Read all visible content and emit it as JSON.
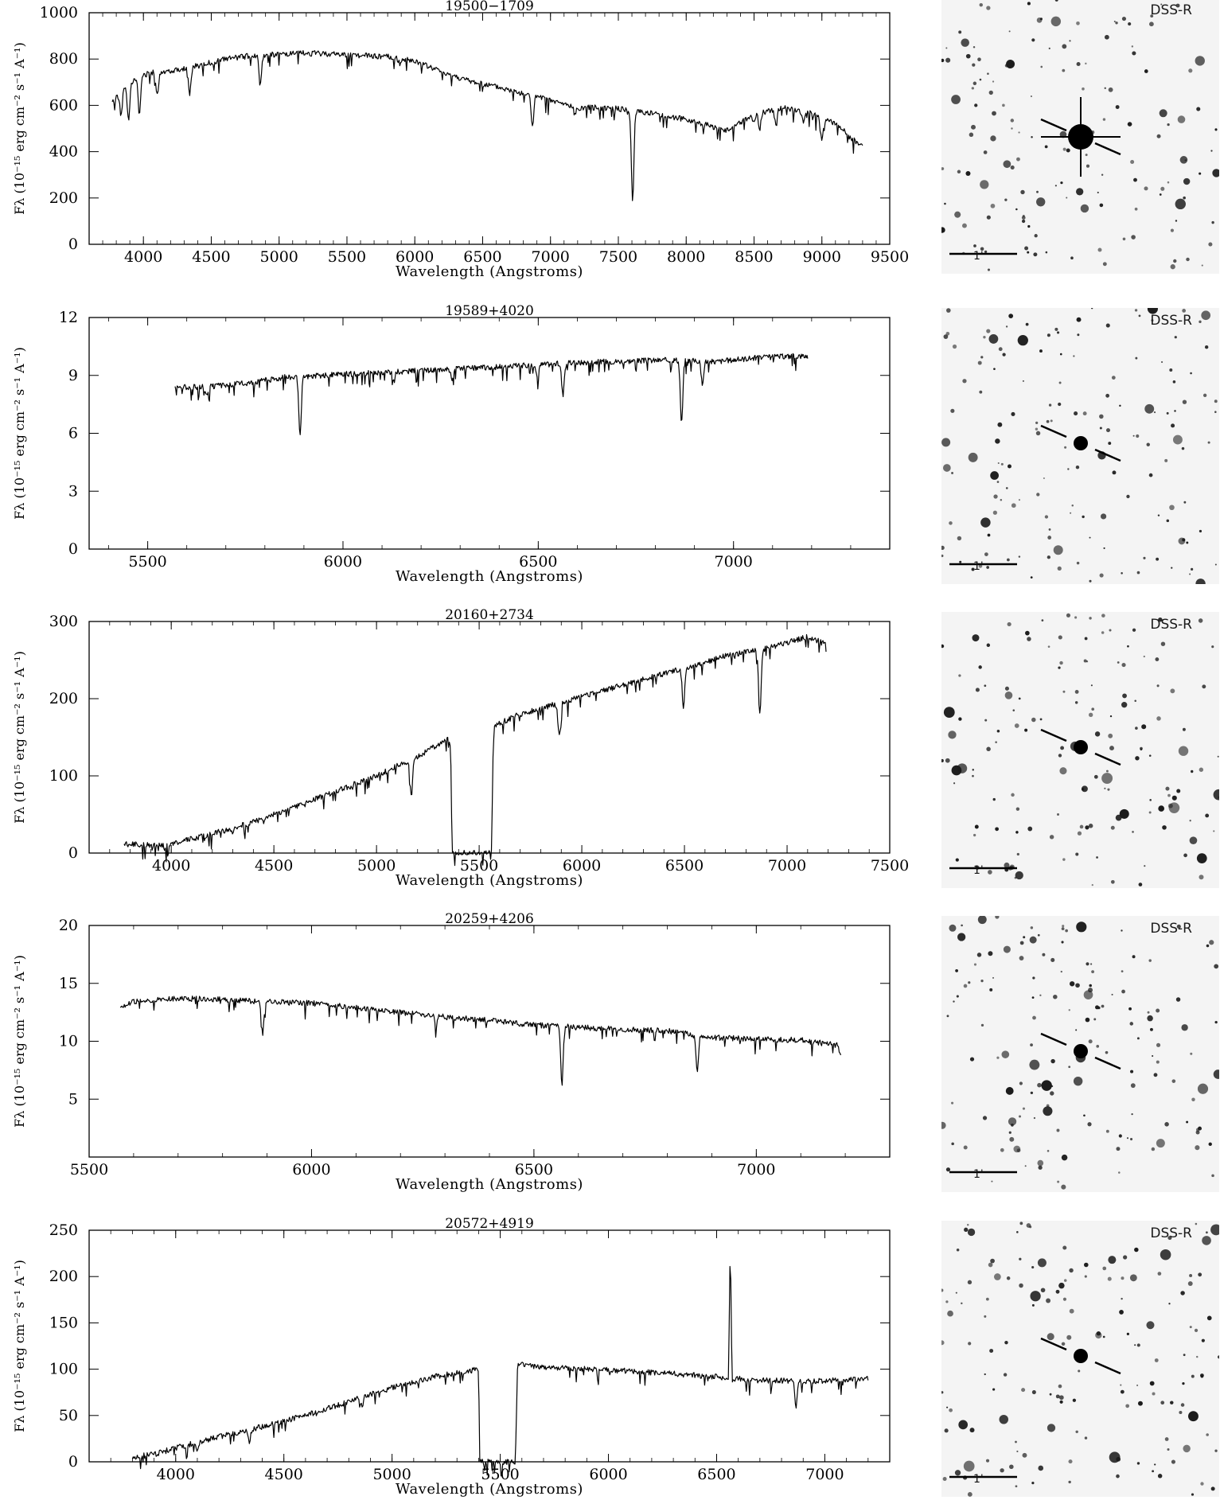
{
  "chart_data": [
    {
      "type": "line",
      "title": "19500−1709",
      "xlabel": "Wavelength (Angstroms)",
      "ylabel": "Fλ (10⁻¹⁵ erg cm⁻² s⁻¹ A⁻¹)",
      "xlim": [
        3600,
        9500
      ],
      "ylim": [
        0,
        1000
      ],
      "xticks": [
        4000,
        4500,
        5000,
        5500,
        6000,
        6500,
        7000,
        7500,
        8000,
        8500,
        9000,
        9500
      ],
      "yticks": [
        0,
        200,
        400,
        600,
        800,
        1000
      ],
      "series": [
        {
          "x": [
            3770,
            3820,
            3880,
            3950,
            4050,
            4200,
            4400,
            4600,
            4800,
            5000,
            5200,
            5400,
            5600,
            5800,
            6000,
            6200,
            6400,
            6600,
            6800,
            6880,
            7000,
            7200,
            7400,
            7600,
            7700,
            7900,
            8100,
            8300,
            8500,
            8700,
            8900,
            9100,
            9300
          ],
          "y": [
            610,
            650,
            690,
            720,
            740,
            750,
            770,
            800,
            815,
            820,
            825,
            822,
            815,
            810,
            790,
            745,
            705,
            680,
            650,
            640,
            620,
            590,
            590,
            580,
            570,
            550,
            525,
            490,
            560,
            590,
            570,
            520,
            420
          ]
        }
      ],
      "absorption": [
        [
          3835,
          560
        ],
        [
          3890,
          540
        ],
        [
          3970,
          560
        ],
        [
          4101,
          640
        ],
        [
          4340,
          650
        ],
        [
          4861,
          690
        ],
        [
          5890,
          780
        ],
        [
          6867,
          510
        ],
        [
          7180,
          560
        ],
        [
          7605,
          180
        ],
        [
          8498,
          520
        ],
        [
          8542,
          500
        ],
        [
          8662,
          510
        ],
        [
          8860,
          530
        ],
        [
          9000,
          450
        ],
        [
          9230,
          450
        ]
      ],
      "survey": "DSS-R",
      "scale": "1'"
    },
    {
      "type": "line",
      "title": "19589+4020",
      "xlabel": "Wavelength (Angstroms)",
      "ylabel": "Fλ (10⁻¹⁵ erg cm⁻² s⁻¹ A⁻¹)",
      "xlim": [
        5350,
        7400
      ],
      "ylim": [
        0,
        12
      ],
      "xticks": [
        5500,
        6000,
        6500,
        7000
      ],
      "yticks": [
        0,
        3,
        6,
        9,
        12
      ],
      "series": [
        {
          "x": [
            5570,
            5650,
            5750,
            5850,
            5950,
            6050,
            6150,
            6250,
            6350,
            6450,
            6550,
            6650,
            6750,
            6850,
            6950,
            7050,
            7150,
            7190
          ],
          "y": [
            8.4,
            8.4,
            8.6,
            8.9,
            9.0,
            9.1,
            9.2,
            9.3,
            9.4,
            9.5,
            9.6,
            9.7,
            9.75,
            9.8,
            9.7,
            9.9,
            10.0,
            10.0
          ]
        }
      ],
      "absorption": [
        [
          5650,
          7.9
        ],
        [
          5890,
          5.8
        ],
        [
          6130,
          8.7
        ],
        [
          6280,
          8.8
        ],
        [
          6497,
          8.9
        ],
        [
          6563,
          8.0
        ],
        [
          6867,
          6.5
        ],
        [
          6920,
          8.6
        ]
      ],
      "survey": "DSS-R",
      "scale": "1'"
    },
    {
      "type": "line",
      "title": "20160+2734",
      "xlabel": "Wavelength (Angstroms)",
      "ylabel": "Fλ (10⁻¹⁵ erg cm⁻² s⁻¹ A⁻¹)",
      "xlim": [
        3600,
        7500
      ],
      "ylim": [
        0,
        300
      ],
      "xticks": [
        4000,
        4500,
        5000,
        5500,
        6000,
        6500,
        7000,
        7500
      ],
      "yticks": [
        0,
        100,
        200,
        300
      ],
      "series": [
        {
          "x": [
            3770,
            3900,
            4000,
            4200,
            4400,
            4600,
            4800,
            5000,
            5200,
            5360,
            5370,
            5380,
            5550,
            5560,
            5570,
            5700,
            5900,
            6100,
            6300,
            6500,
            6700,
            6900,
            7100,
            7150,
            7190
          ],
          "y": [
            12,
            10,
            12,
            25,
            40,
            60,
            80,
            100,
            125,
            150,
            0,
            0,
            0,
            0,
            165,
            180,
            195,
            210,
            225,
            240,
            255,
            265,
            280,
            275,
            270
          ]
        }
      ],
      "absorption": [
        [
          3970,
          3
        ],
        [
          4300,
          25
        ],
        [
          5170,
          75
        ],
        [
          5890,
          152
        ],
        [
          6495,
          190
        ],
        [
          6867,
          180
        ]
      ],
      "survey": "DSS-R",
      "scale": "1'"
    },
    {
      "type": "line",
      "title": "20259+4206",
      "xlabel": "Wavelength (Angstroms)",
      "ylabel": "Fλ (10⁻¹⁵ erg cm⁻² s⁻¹ A⁻¹)",
      "xlim": [
        5500,
        7300
      ],
      "ylim": [
        0,
        20
      ],
      "xticks": [
        5500,
        6000,
        6500,
        7000
      ],
      "yticks": [
        5,
        10,
        15,
        20
      ],
      "series": [
        {
          "x": [
            5570,
            5600,
            5700,
            5800,
            5900,
            6000,
            6100,
            6200,
            6300,
            6400,
            6500,
            6600,
            6700,
            6800,
            6850,
            6900,
            7000,
            7100,
            7190
          ],
          "y": [
            13.0,
            13.4,
            13.7,
            13.6,
            13.4,
            13.3,
            12.9,
            12.5,
            12.1,
            11.8,
            11.4,
            11.2,
            11.0,
            10.9,
            10.6,
            10.3,
            10.2,
            10.1,
            9.6
          ]
        }
      ],
      "absorption": [
        [
          5890,
          10.6
        ],
        [
          6280,
          11.2
        ],
        [
          6563,
          6.2
        ],
        [
          6867,
          7.4
        ],
        [
          7190,
          8.8
        ]
      ],
      "survey": "DSS-R",
      "scale": "1'"
    },
    {
      "type": "line",
      "title": "20572+4919",
      "xlabel": "Wavelength (Angstroms)",
      "ylabel": "Fλ (10⁻¹⁵ erg cm⁻² s⁻¹ A⁻¹)",
      "xlim": [
        3600,
        7300
      ],
      "ylim": [
        0,
        250
      ],
      "xticks": [
        4000,
        4500,
        5000,
        5500,
        6000,
        6500,
        7000
      ],
      "yticks": [
        0,
        50,
        100,
        150,
        200,
        250
      ],
      "series": [
        {
          "x": [
            3800,
            3900,
            4000,
            4200,
            4400,
            4600,
            4800,
            5000,
            5200,
            5400,
            5405,
            5415,
            5560,
            5570,
            5580,
            5700,
            5900,
            6100,
            6300,
            6500,
            6555,
            6563,
            6571,
            6700,
            6900,
            7100,
            7200
          ],
          "y": [
            5,
            8,
            15,
            27,
            38,
            50,
            65,
            80,
            92,
            100,
            0,
            0,
            0,
            0,
            105,
            102,
            100,
            98,
            95,
            92,
            90,
            238,
            90,
            88,
            87,
            88,
            90
          ]
        }
      ],
      "absorption": [
        [
          4101,
          12
        ],
        [
          4340,
          22
        ],
        [
          4861,
          60
        ],
        [
          6867,
          60
        ]
      ],
      "survey": "DSS-R",
      "scale": "1'"
    }
  ]
}
